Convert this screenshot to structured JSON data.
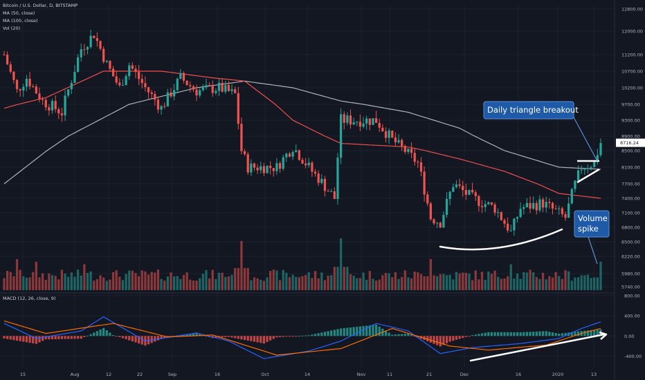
{
  "colors": {
    "background": "#131722",
    "grid": "#1e222d",
    "up": "#26a69a",
    "down": "#ef5350",
    "ma50": "#f04e4e",
    "ma100": "#b0b3ba",
    "macd": "#2962ff",
    "signal": "#ff6d00",
    "callout": "#1e5aa8",
    "annotation": "#ffffff",
    "price_tag": "#ffffff"
  },
  "header": {
    "symbol": "Bitcoin / U.S. Dollar, D, BITSTAMP",
    "ind1": "MA (50, close)",
    "ind2": "MA (100, close)",
    "ind3": "Vol (20)",
    "macd_label": "MACD (12, 26, close, 9)"
  },
  "price_axis": {
    "ticks": [
      "12800.00",
      "12000.00",
      "11200.00",
      "10700.00",
      "10200.00",
      "9700.00",
      "9300.00",
      "8900.00",
      "8500.00",
      "8100.00",
      "7700.00",
      "7400.00",
      "7100.00",
      "6800.00",
      "6500.00",
      "6220.00",
      "5980.00",
      "5740.00"
    ],
    "current_price": "8716.24"
  },
  "macd_axis": {
    "ticks": [
      "800.00",
      "400.00",
      "0.00",
      "-400.00"
    ]
  },
  "time_axis": {
    "labels": [
      "15",
      "Aug",
      "12",
      "22",
      "Sep",
      "16",
      "Oct",
      "14",
      "Nov",
      "11",
      "21",
      "Dec",
      "16",
      "2020",
      "13"
    ]
  },
  "callouts": {
    "triangle": "Daily triangle breakout",
    "volume_line1": "Volume",
    "volume_line2": "spike"
  },
  "chart_data": [
    {
      "type": "candlestick",
      "title": "Bitcoin / U.S. Dollar, D, BITSTAMP",
      "x_range": [
        "2019-07-12",
        "2020-01-14"
      ],
      "ylim": [
        5740,
        12800
      ],
      "waypoints": [
        {
          "date": "2019-07-12",
          "close": 11200
        },
        {
          "date": "2019-07-16",
          "close": 10100
        },
        {
          "date": "2019-07-19",
          "close": 10500
        },
        {
          "date": "2019-07-24",
          "close": 9800
        },
        {
          "date": "2019-07-30",
          "close": 9500
        },
        {
          "date": "2019-08-05",
          "close": 11400
        },
        {
          "date": "2019-08-09",
          "close": 11900
        },
        {
          "date": "2019-08-13",
          "close": 10900
        },
        {
          "date": "2019-08-17",
          "close": 10200
        },
        {
          "date": "2019-08-20",
          "close": 10900
        },
        {
          "date": "2019-08-25",
          "close": 10200
        },
        {
          "date": "2019-08-30",
          "close": 9600
        },
        {
          "date": "2019-09-05",
          "close": 10500
        },
        {
          "date": "2019-09-10",
          "close": 10100
        },
        {
          "date": "2019-09-17",
          "close": 10200
        },
        {
          "date": "2019-09-22",
          "close": 10000
        },
        {
          "date": "2019-09-24",
          "close": 8500
        },
        {
          "date": "2019-09-26",
          "close": 8100
        },
        {
          "date": "2019-10-05",
          "close": 8100
        },
        {
          "date": "2019-10-10",
          "close": 8600
        },
        {
          "date": "2019-10-16",
          "close": 8000
        },
        {
          "date": "2019-10-23",
          "close": 7400
        },
        {
          "date": "2019-10-25",
          "close": 9300
        },
        {
          "date": "2019-11-05",
          "close": 9300
        },
        {
          "date": "2019-11-10",
          "close": 8800
        },
        {
          "date": "2019-11-18",
          "close": 8200
        },
        {
          "date": "2019-11-22",
          "close": 7000
        },
        {
          "date": "2019-11-25",
          "close": 6900
        },
        {
          "date": "2019-11-29",
          "close": 7700
        },
        {
          "date": "2019-12-05",
          "close": 7400
        },
        {
          "date": "2019-12-12",
          "close": 7200
        },
        {
          "date": "2019-12-17",
          "close": 6700
        },
        {
          "date": "2019-12-20",
          "close": 7200
        },
        {
          "date": "2019-12-27",
          "close": 7300
        },
        {
          "date": "2020-01-03",
          "close": 7000
        },
        {
          "date": "2020-01-06",
          "close": 7700
        },
        {
          "date": "2020-01-08",
          "close": 8100
        },
        {
          "date": "2020-01-12",
          "close": 8200
        },
        {
          "date": "2020-01-14",
          "close": 8716.24
        }
      ],
      "ma50": [
        {
          "date": "2019-07-12",
          "value": 9600
        },
        {
          "date": "2019-07-25",
          "value": 9900
        },
        {
          "date": "2019-08-12",
          "value": 10700
        },
        {
          "date": "2019-08-30",
          "value": 10700
        },
        {
          "date": "2019-09-15",
          "value": 10500
        },
        {
          "date": "2019-09-25",
          "value": 10400
        },
        {
          "date": "2019-10-10",
          "value": 9300
        },
        {
          "date": "2019-10-25",
          "value": 8700
        },
        {
          "date": "2019-11-15",
          "value": 8600
        },
        {
          "date": "2019-12-01",
          "value": 8300
        },
        {
          "date": "2019-12-15",
          "value": 8000
        },
        {
          "date": "2020-01-01",
          "value": 7500
        },
        {
          "date": "2020-01-14",
          "value": 7400
        }
      ],
      "ma100": [
        {
          "date": "2019-07-12",
          "value": 7700
        },
        {
          "date": "2019-08-01",
          "value": 8900
        },
        {
          "date": "2019-08-20",
          "value": 9700
        },
        {
          "date": "2019-09-10",
          "value": 10200
        },
        {
          "date": "2019-09-25",
          "value": 10400
        },
        {
          "date": "2019-10-10",
          "value": 10200
        },
        {
          "date": "2019-10-25",
          "value": 9800
        },
        {
          "date": "2019-11-15",
          "value": 9500
        },
        {
          "date": "2019-12-01",
          "value": 9100
        },
        {
          "date": "2019-12-15",
          "value": 8500
        },
        {
          "date": "2020-01-01",
          "value": 8100
        },
        {
          "date": "2020-01-14",
          "value": 8050
        }
      ]
    },
    {
      "type": "bar",
      "title": "Vol (20)",
      "volume_spikes": [
        {
          "date": "2019-07-16",
          "relative": 0.6
        },
        {
          "date": "2019-07-22",
          "relative": 0.55
        },
        {
          "date": "2019-08-06",
          "relative": 0.5
        },
        {
          "date": "2019-09-24",
          "relative": 0.95
        },
        {
          "date": "2019-10-25",
          "relative": 1.0
        },
        {
          "date": "2019-11-22",
          "relative": 0.6
        },
        {
          "date": "2019-12-17",
          "relative": 0.5
        },
        {
          "date": "2020-01-14",
          "relative": 0.55
        }
      ]
    },
    {
      "type": "line",
      "title": "MACD (12, 26, close, 9)",
      "ylim": [
        -600,
        800
      ],
      "macd": [
        {
          "date": "2019-07-12",
          "value": 250
        },
        {
          "date": "2019-07-22",
          "value": -50
        },
        {
          "date": "2019-08-05",
          "value": 100
        },
        {
          "date": "2019-08-12",
          "value": 380
        },
        {
          "date": "2019-08-25",
          "value": -100
        },
        {
          "date": "2019-09-10",
          "value": 60
        },
        {
          "date": "2019-09-20",
          "value": -100
        },
        {
          "date": "2019-10-01",
          "value": -450
        },
        {
          "date": "2019-10-15",
          "value": -300
        },
        {
          "date": "2019-10-25",
          "value": -100
        },
        {
          "date": "2019-11-05",
          "value": 250
        },
        {
          "date": "2019-11-15",
          "value": 100
        },
        {
          "date": "2019-11-25",
          "value": -350
        },
        {
          "date": "2019-12-05",
          "value": -230
        },
        {
          "date": "2019-12-20",
          "value": -150
        },
        {
          "date": "2020-01-01",
          "value": -50
        },
        {
          "date": "2020-01-08",
          "value": 150
        },
        {
          "date": "2020-01-14",
          "value": 280
        }
      ],
      "signal": [
        {
          "date": "2019-07-12",
          "value": 300
        },
        {
          "date": "2019-07-25",
          "value": 50
        },
        {
          "date": "2019-08-15",
          "value": 250
        },
        {
          "date": "2019-09-01",
          "value": -20
        },
        {
          "date": "2019-09-15",
          "value": 20
        },
        {
          "date": "2019-10-05",
          "value": -380
        },
        {
          "date": "2019-10-25",
          "value": -250
        },
        {
          "date": "2019-11-10",
          "value": 150
        },
        {
          "date": "2019-11-28",
          "value": -200
        },
        {
          "date": "2019-12-10",
          "value": -280
        },
        {
          "date": "2019-12-28",
          "value": -180
        },
        {
          "date": "2020-01-08",
          "value": 50
        },
        {
          "date": "2020-01-14",
          "value": 150
        }
      ]
    }
  ]
}
